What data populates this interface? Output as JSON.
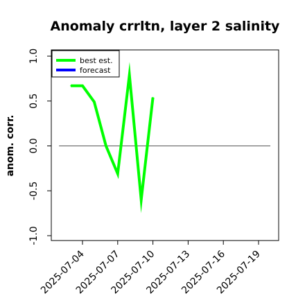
{
  "chart_data": {
    "type": "line",
    "title": "Anomaly crrltn, layer 2 salinity",
    "ylabel": "anom. corr.",
    "xlabel": "",
    "ylim": [
      -1.0,
      1.0
    ],
    "y_ticks": [
      "-1.0",
      "-0.5",
      "0.0",
      "0.5",
      "1.0"
    ],
    "x_ticks": [
      {
        "label": "2025-07-04",
        "color": "#000000"
      },
      {
        "label": "2025-07-07",
        "color": "#000000"
      },
      {
        "label": "2025-07-10",
        "color": "#228b22"
      },
      {
        "label": "2025-07-13",
        "color": "#000000"
      },
      {
        "label": "2025-07-16",
        "color": "#000000"
      },
      {
        "label": "2025-07-19",
        "color": "#000000"
      }
    ],
    "reference_line": 0.0,
    "legend": {
      "placement": "top-left",
      "entries": [
        {
          "label": "best est.",
          "color": "#00ff00"
        },
        {
          "label": "forecast",
          "color": "#0000ff"
        }
      ]
    },
    "series": [
      {
        "name": "best est.",
        "color": "#00ff00",
        "x": [
          "2025-07-03",
          "2025-07-04",
          "2025-07-05",
          "2025-07-06",
          "2025-07-07",
          "2025-07-08",
          "2025-07-09",
          "2025-07-10"
        ],
        "y": [
          0.67,
          0.67,
          0.49,
          0.0,
          -0.31,
          0.79,
          -0.6,
          0.54
        ]
      },
      {
        "name": "forecast",
        "color": "#0000ff",
        "x": [],
        "y": []
      }
    ]
  }
}
